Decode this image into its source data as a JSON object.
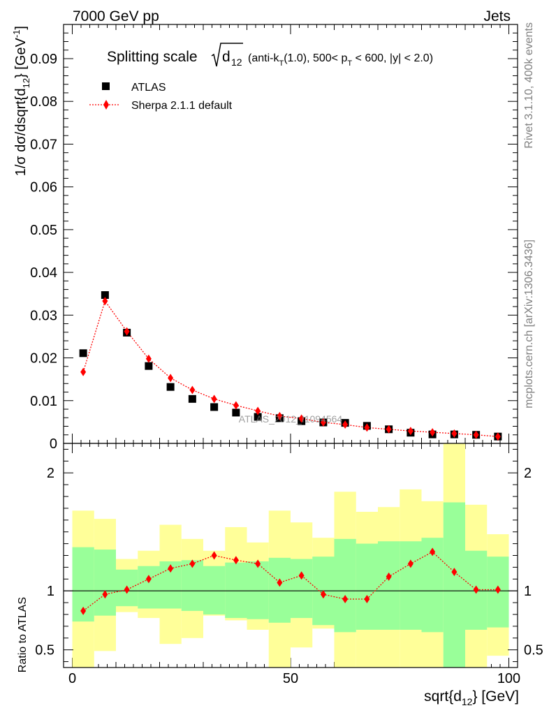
{
  "header": {
    "left": "7000 GeV pp",
    "right": "Jets"
  },
  "side_labels": {
    "rivet": "Rivet 3.1.10,  400k events",
    "mcplots": "mcplots.cern.ch [arXiv:1306.3436]"
  },
  "watermark": "ATLAS_2012_I1094564",
  "title": {
    "main": "Splitting scale",
    "sqrt_arg": "d",
    "sqrt_sub": "12",
    "paren_a": "(anti-k",
    "paren_a_sub": "T",
    "paren_b": "(1.0), 500< p",
    "paren_b_sub": "T",
    "paren_c": " < 600, |y| < 2.0)"
  },
  "legend": {
    "data_label": "ATLAS",
    "mc_label": "Sherpa 2.1.1 default"
  },
  "colors": {
    "mc": "#ff0000",
    "band_inner": "#99ff99",
    "band_outer": "#ffff99",
    "data": "#000000"
  },
  "axes": {
    "ylabel_main": "1/σ dσ/dsqrt{d",
    "ylabel_sub": "12",
    "ylabel_end": "} [GeV",
    "ylabel_sup": "-1",
    "ylabel_close": "]",
    "ylabel_ratio": "Ratio to ATLAS",
    "xlabel_main": "sqrt{d",
    "xlabel_sub": "12",
    "xlabel_end": "} [GeV]"
  },
  "chart_data": {
    "type": "scatter",
    "x_edges": [
      0,
      5,
      10,
      15,
      20,
      25,
      30,
      35,
      40,
      45,
      50,
      55,
      60,
      65,
      70,
      75,
      80,
      85,
      90,
      95,
      100
    ],
    "x": [
      2.5,
      7.5,
      12.5,
      17.5,
      22.5,
      27.5,
      32.5,
      37.5,
      42.5,
      47.5,
      52.5,
      57.5,
      62.5,
      67.5,
      72.5,
      77.5,
      82.5,
      87.5,
      92.5,
      97.5
    ],
    "xlim": [
      -2,
      102
    ],
    "top": {
      "ylim": [
        0,
        0.098
      ],
      "yticks": [
        0,
        0.01,
        0.02,
        0.03,
        0.04,
        0.05,
        0.06,
        0.07,
        0.08,
        0.09
      ],
      "ytick_labels": [
        "0",
        "0.01",
        "0.02",
        "0.03",
        "0.04",
        "0.05",
        "0.06",
        "0.07",
        "0.08",
        "0.09"
      ]
    },
    "ratio": {
      "ylim": [
        0.35,
        2.25
      ],
      "yticks": [
        0.5,
        1,
        2
      ],
      "ytick_labels": [
        "0.5",
        "1",
        "2"
      ],
      "ref": 1
    },
    "xticks": [
      0,
      50,
      100
    ],
    "xtick_labels": [
      "0",
      "50",
      "100"
    ],
    "series": [
      {
        "name": "ATLAS",
        "values": [
          0.0211,
          0.0347,
          0.0259,
          0.0181,
          0.0132,
          0.0104,
          0.0085,
          0.0072,
          0.0062,
          0.0059,
          0.0052,
          0.0049,
          0.0048,
          0.0041,
          0.0033,
          0.0025,
          0.0021,
          0.0021,
          0.002,
          0.0016
        ]
      },
      {
        "name": "Sherpa 2.1.1 default",
        "values": [
          0.0167,
          0.0333,
          0.0262,
          0.0198,
          0.0153,
          0.0125,
          0.0104,
          0.0089,
          0.0076,
          0.0064,
          0.0058,
          0.0049,
          0.0044,
          0.0037,
          0.0033,
          0.0029,
          0.0026,
          0.0023,
          0.002,
          0.0016
        ],
        "ratio": [
          0.83,
          0.97,
          1.01,
          1.1,
          1.19,
          1.23,
          1.3,
          1.26,
          1.23,
          1.07,
          1.13,
          0.97,
          0.93,
          0.93,
          1.12,
          1.23,
          1.33,
          1.16,
          1.01,
          1.01
        ]
      }
    ],
    "band_inner": {
      "lo": [
        0.74,
        0.79,
        0.87,
        0.85,
        0.85,
        0.83,
        0.8,
        0.77,
        0.76,
        0.73,
        0.77,
        0.71,
        0.65,
        0.67,
        0.67,
        0.67,
        0.65,
        0.35,
        0.67,
        0.69
      ],
      "hi": [
        1.37,
        1.35,
        1.18,
        1.21,
        1.25,
        1.26,
        1.21,
        1.24,
        1.25,
        1.28,
        1.27,
        1.29,
        1.44,
        1.4,
        1.42,
        1.42,
        1.45,
        1.75,
        1.34,
        1.29
      ]
    },
    "band_outer": {
      "lo": [
        0.35,
        0.49,
        0.82,
        0.77,
        0.55,
        0.6,
        0.79,
        0.75,
        0.67,
        0.35,
        0.52,
        0.68,
        0.35,
        0.35,
        0.35,
        0.35,
        0.35,
        0.35,
        0.35,
        0.45
      ],
      "hi": [
        1.68,
        1.61,
        1.27,
        1.34,
        1.56,
        1.44,
        1.34,
        1.54,
        1.41,
        1.68,
        1.58,
        1.45,
        1.84,
        1.67,
        1.71,
        1.86,
        1.76,
        2.25,
        1.73,
        1.48
      ]
    }
  }
}
